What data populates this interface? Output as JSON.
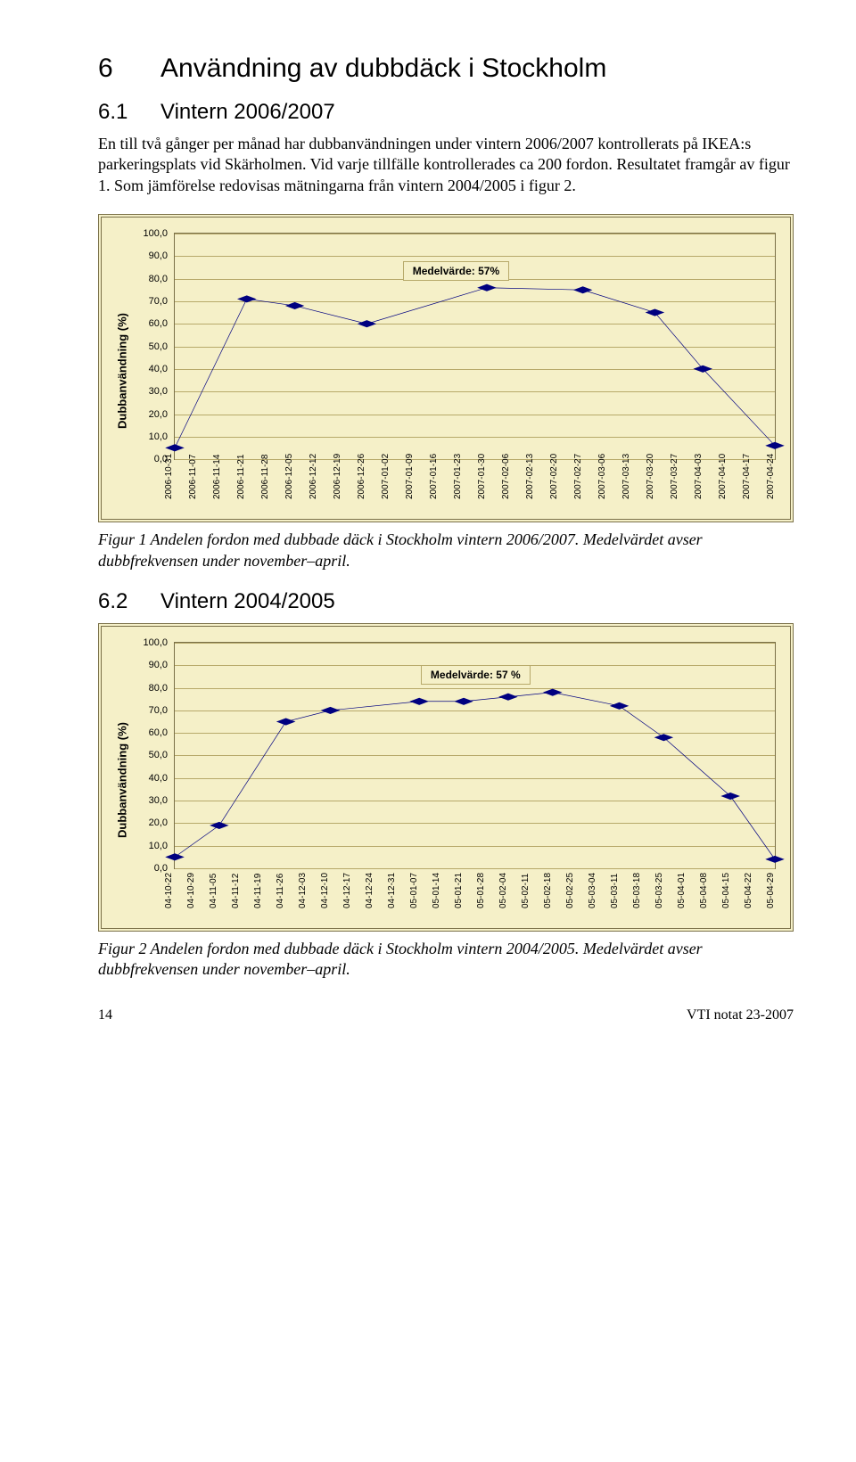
{
  "heading1": {
    "num": "6",
    "text": "Användning av dubbdäck i Stockholm"
  },
  "heading2a": {
    "num": "6.1",
    "text": "Vintern 2006/2007"
  },
  "heading2b": {
    "num": "6.2",
    "text": "Vintern 2004/2005"
  },
  "body1": "En till två gånger per månad har dubbanvändningen under vintern 2006/2007 kontrollerats på IKEA:s parkeringsplats vid Skärholmen. Vid varje tillfälle kontrollerades ca 200 fordon. Resultatet framgår av figur 1. Som jämförelse redovisas mätningarna från vintern 2004/2005 i figur 2.",
  "caption1": "Figur 1  Andelen fordon med dubbade däck i Stockholm vintern 2006/2007. Medelvärdet avser dubbfrekvensen under november–april.",
  "caption2": "Figur 2  Andelen fordon med dubbade däck i Stockholm vintern 2004/2005. Medelvärdet avser dubbfrekvensen under november–april.",
  "footer": {
    "page": "14",
    "doc": "VTI notat 23-2007"
  },
  "chart1": {
    "type": "line",
    "ylabel": "Dubbanvändning (%)",
    "note": "Medelvärde: 57%",
    "note_left_pct": 38,
    "note_top_pct": 12,
    "ylim": [
      0,
      100
    ],
    "ytick_step": 10,
    "plot_bg": "#f5f0c8",
    "grid_color": "#b7a96a",
    "border_color": "#7a7048",
    "line_color": "#000080",
    "marker_color": "#000080",
    "x_labels": [
      "2006-10-31",
      "2006-11-07",
      "2006-11-14",
      "2006-11-21",
      "2006-11-28",
      "2006-12-05",
      "2006-12-12",
      "2006-12-19",
      "2006-12-26",
      "2007-01-02",
      "2007-01-09",
      "2007-01-16",
      "2007-01-23",
      "2007-01-30",
      "2007-02-06",
      "2007-02-13",
      "2007-02-20",
      "2007-02-27",
      "2007-03-06",
      "2007-03-13",
      "2007-03-20",
      "2007-03-27",
      "2007-04-03",
      "2007-04-10",
      "2007-04-17",
      "2007-04-24"
    ],
    "points": [
      {
        "xi": 0,
        "y": 5
      },
      {
        "xi": 3,
        "y": 71
      },
      {
        "xi": 5,
        "y": 68
      },
      {
        "xi": 8,
        "y": 60
      },
      {
        "xi": 13,
        "y": 76
      },
      {
        "xi": 17,
        "y": 75
      },
      {
        "xi": 20,
        "y": 65
      },
      {
        "xi": 22,
        "y": 40
      },
      {
        "xi": 25,
        "y": 6
      }
    ]
  },
  "chart2": {
    "type": "line",
    "ylabel": "Dubbanvändning (%)",
    "note": "Medelvärde: 57 %",
    "note_left_pct": 41,
    "note_top_pct": 10,
    "ylim": [
      0,
      100
    ],
    "ytick_step": 10,
    "plot_bg": "#f5f0c8",
    "grid_color": "#b7a96a",
    "border_color": "#7a7048",
    "line_color": "#000080",
    "marker_color": "#000080",
    "x_labels": [
      "04-10-22",
      "04-10-29",
      "04-11-05",
      "04-11-12",
      "04-11-19",
      "04-11-26",
      "04-12-03",
      "04-12-10",
      "04-12-17",
      "04-12-24",
      "04-12-31",
      "05-01-07",
      "05-01-14",
      "05-01-21",
      "05-01-28",
      "05-02-04",
      "05-02-11",
      "05-02-18",
      "05-02-25",
      "05-03-04",
      "05-03-11",
      "05-03-18",
      "05-03-25",
      "05-04-01",
      "05-04-08",
      "05-04-15",
      "05-04-22",
      "05-04-29"
    ],
    "points": [
      {
        "xi": 0,
        "y": 5
      },
      {
        "xi": 2,
        "y": 19
      },
      {
        "xi": 5,
        "y": 65
      },
      {
        "xi": 7,
        "y": 70
      },
      {
        "xi": 11,
        "y": 74
      },
      {
        "xi": 13,
        "y": 74
      },
      {
        "xi": 15,
        "y": 76
      },
      {
        "xi": 17,
        "y": 78
      },
      {
        "xi": 20,
        "y": 72
      },
      {
        "xi": 22,
        "y": 58
      },
      {
        "xi": 25,
        "y": 32
      },
      {
        "xi": 27,
        "y": 4
      }
    ]
  }
}
